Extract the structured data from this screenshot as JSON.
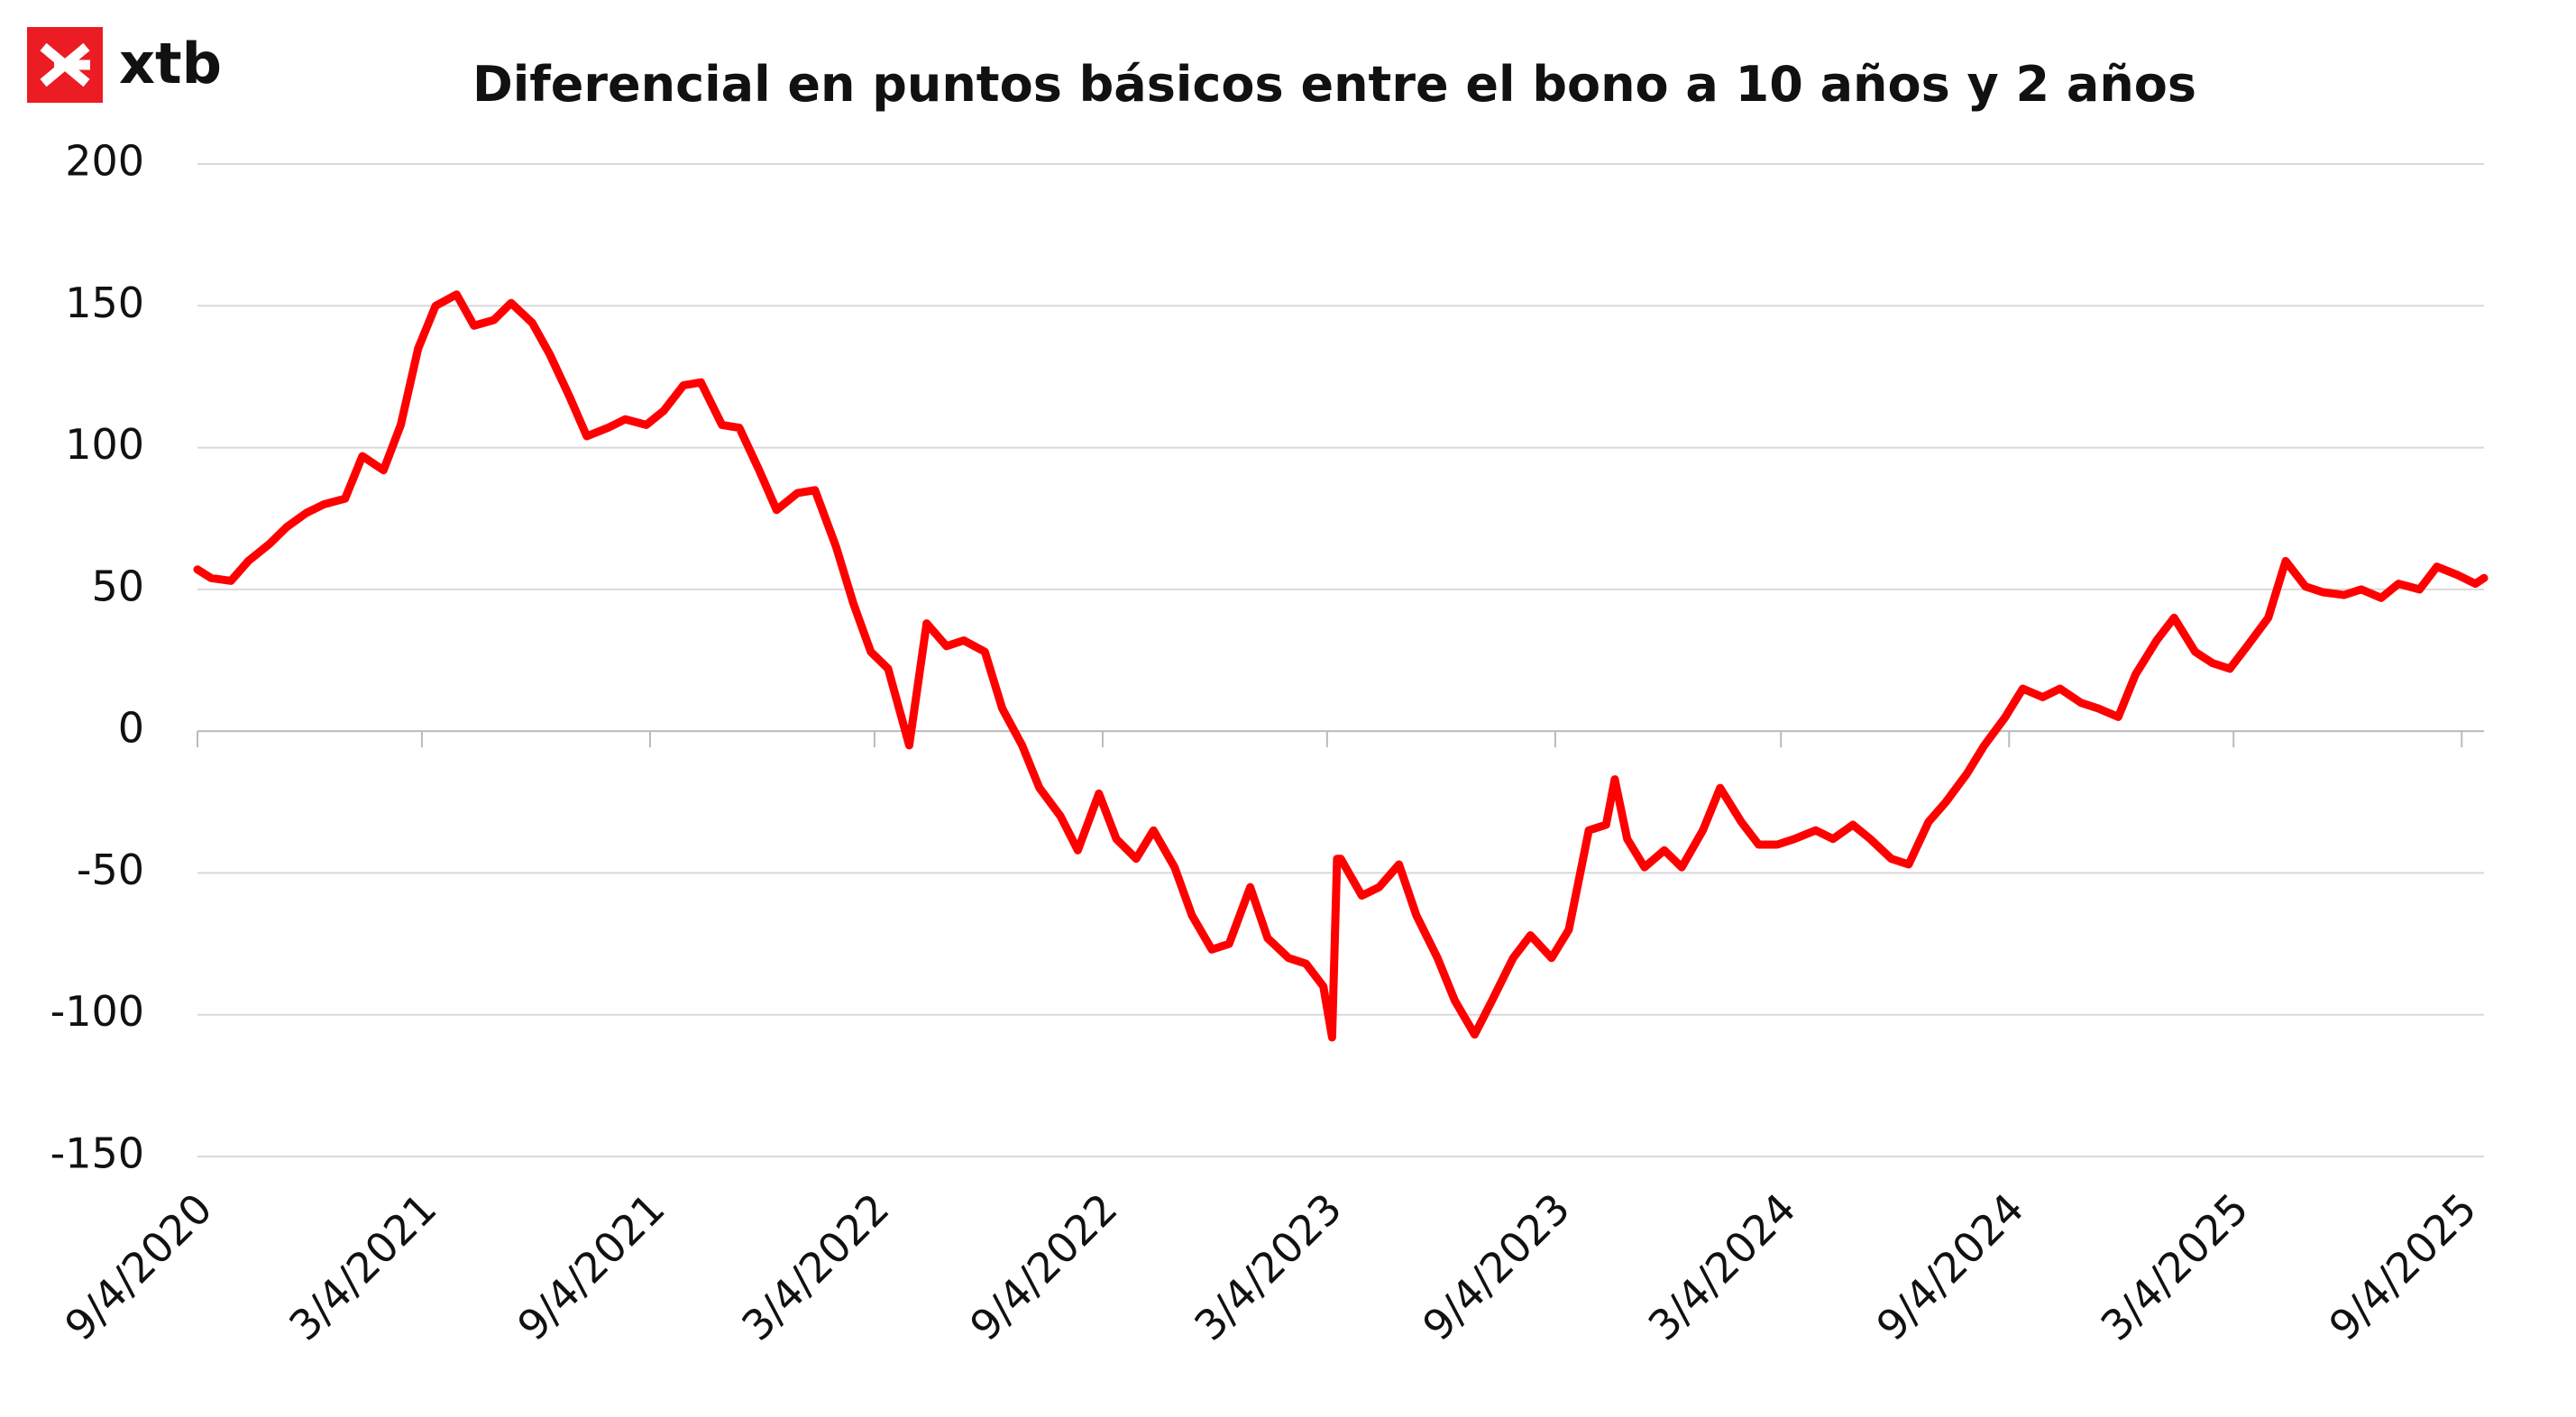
{
  "brand": "xtb",
  "chart_data": {
    "type": "line",
    "title": "Diferencial  en puntos básicos entre el bono a 10 años y 2 años",
    "x": [
      "2020-09-04",
      "2020-09-15",
      "2020-10-01",
      "2020-10-15",
      "2020-11-01",
      "2020-11-15",
      "2020-12-01",
      "2020-12-15",
      "2021-01-01",
      "2021-01-15",
      "2021-02-01",
      "2021-02-15",
      "2021-03-01",
      "2021-03-15",
      "2021-04-01",
      "2021-04-15",
      "2021-05-01",
      "2021-05-15",
      "2021-06-01",
      "2021-06-15",
      "2021-07-01",
      "2021-07-15",
      "2021-08-01",
      "2021-08-15",
      "2021-09-01",
      "2021-09-15",
      "2021-10-01",
      "2021-10-15",
      "2021-11-01",
      "2021-11-15",
      "2021-12-01",
      "2021-12-15",
      "2022-01-01",
      "2022-01-15",
      "2022-02-01",
      "2022-02-15",
      "2022-03-01",
      "2022-03-15",
      "2022-04-01",
      "2022-04-15",
      "2022-05-01",
      "2022-05-15",
      "2022-06-01",
      "2022-06-15",
      "2022-07-01",
      "2022-07-15",
      "2022-08-01",
      "2022-08-15",
      "2022-09-01",
      "2022-09-15",
      "2022-10-01",
      "2022-10-15",
      "2022-11-01",
      "2022-11-15",
      "2022-12-01",
      "2022-12-15",
      "2023-01-01",
      "2023-01-15",
      "2023-02-01",
      "2023-02-15",
      "2023-03-01",
      "2023-03-08",
      "2023-03-12",
      "2023-03-15",
      "2023-04-01",
      "2023-04-15",
      "2023-05-01",
      "2023-05-15",
      "2023-06-01",
      "2023-06-15",
      "2023-07-01",
      "2023-07-15",
      "2023-08-01",
      "2023-08-15",
      "2023-09-01",
      "2023-09-15",
      "2023-10-01",
      "2023-10-15",
      "2023-10-22",
      "2023-11-01",
      "2023-11-15",
      "2023-12-01",
      "2023-12-15",
      "2024-01-01",
      "2024-01-15",
      "2024-02-01",
      "2024-02-15",
      "2024-03-01",
      "2024-03-15",
      "2024-04-01",
      "2024-04-15",
      "2024-05-01",
      "2024-05-15",
      "2024-06-01",
      "2024-06-15",
      "2024-07-01",
      "2024-07-15",
      "2024-08-01",
      "2024-08-15",
      "2024-09-01",
      "2024-09-15",
      "2024-10-01",
      "2024-10-15",
      "2024-11-01",
      "2024-11-15",
      "2024-12-01",
      "2024-12-15",
      "2025-01-01",
      "2025-01-15",
      "2025-02-01",
      "2025-02-15",
      "2025-03-01",
      "2025-03-15",
      "2025-04-01",
      "2025-04-15",
      "2025-05-01",
      "2025-05-15",
      "2025-06-01",
      "2025-06-15",
      "2025-07-01",
      "2025-07-15",
      "2025-08-01",
      "2025-08-15",
      "2025-09-01",
      "2025-09-15",
      "2025-09-22"
    ],
    "series": [
      {
        "name": "Diferencial",
        "color": "#ff0000",
        "values": [
          57,
          54,
          53,
          60,
          66,
          72,
          77,
          80,
          82,
          97,
          92,
          108,
          135,
          150,
          154,
          143,
          145,
          151,
          144,
          133,
          118,
          104,
          107,
          110,
          108,
          113,
          122,
          123,
          108,
          107,
          92,
          78,
          84,
          85,
          65,
          45,
          28,
          22,
          -5,
          38,
          30,
          32,
          28,
          8,
          -5,
          -20,
          -30,
          -42,
          -22,
          -38,
          -45,
          -35,
          -48,
          -65,
          -77,
          -75,
          -55,
          -73,
          -80,
          -82,
          -90,
          -108,
          -45,
          -45,
          -58,
          -55,
          -47,
          -65,
          -80,
          -95,
          -107,
          -95,
          -80,
          -72,
          -80,
          -70,
          -35,
          -33,
          -17,
          -38,
          -48,
          -42,
          -48,
          -35,
          -20,
          -32,
          -40,
          -40,
          -38,
          -35,
          -38,
          -33,
          -38,
          -45,
          -47,
          -32,
          -25,
          -15,
          -5,
          5,
          15,
          12,
          15,
          10,
          8,
          5,
          20,
          32,
          40,
          28,
          24,
          22,
          30,
          40,
          60,
          51,
          49,
          48,
          50,
          47,
          52,
          50,
          58,
          55,
          52,
          54
        ]
      }
    ],
    "xlim": [
      "2020-09-04",
      "2025-09-22"
    ],
    "xticks": [
      {
        "value": "2020-09-04",
        "label": "9/4/2020"
      },
      {
        "value": "2021-03-04",
        "label": "3/4/2021"
      },
      {
        "value": "2021-09-04",
        "label": "9/4/2021"
      },
      {
        "value": "2022-03-04",
        "label": "3/4/2022"
      },
      {
        "value": "2022-09-04",
        "label": "9/4/2022"
      },
      {
        "value": "2023-03-04",
        "label": "3/4/2023"
      },
      {
        "value": "2023-09-04",
        "label": "9/4/2023"
      },
      {
        "value": "2024-03-04",
        "label": "3/4/2024"
      },
      {
        "value": "2024-09-04",
        "label": "9/4/2024"
      },
      {
        "value": "2025-03-04",
        "label": "3/4/2025"
      },
      {
        "value": "2025-09-04",
        "label": "9/4/2025"
      }
    ],
    "ylim": [
      -150,
      200
    ],
    "yticks": [
      -150,
      -100,
      -50,
      0,
      50,
      100,
      150,
      200
    ],
    "grid": true
  }
}
